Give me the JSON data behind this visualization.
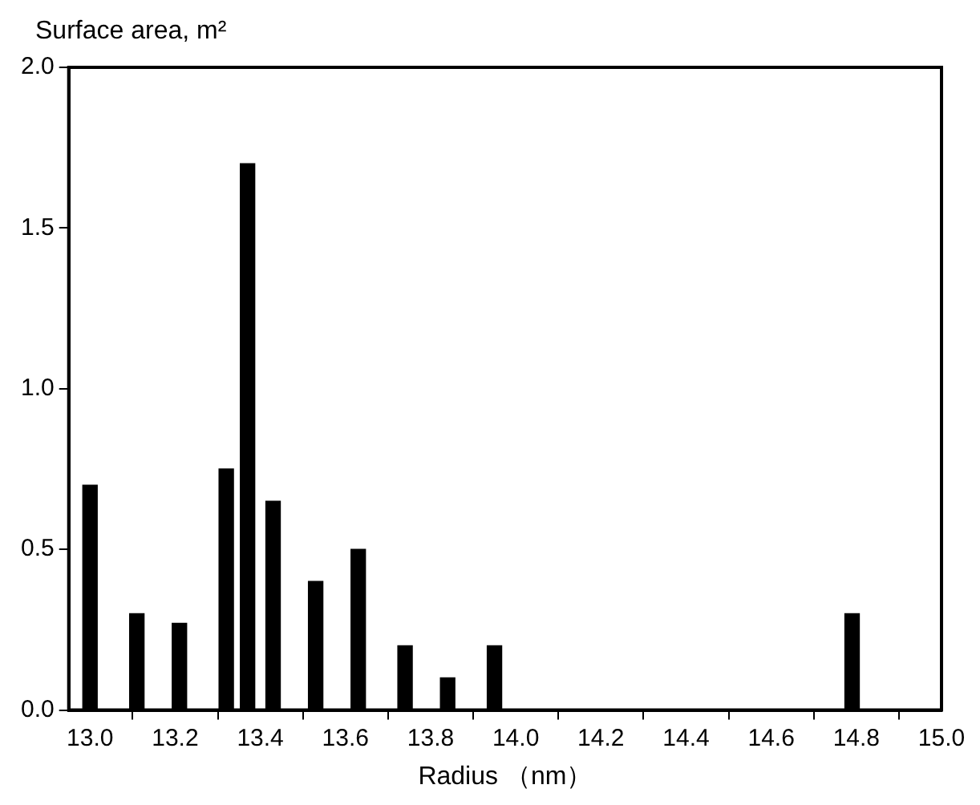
{
  "chart_data": {
    "type": "bar",
    "xlabel": "Radius （nm）",
    "ylabel": "Surface area, m²",
    "x": [
      13.0,
      13.11,
      13.21,
      13.32,
      13.37,
      13.43,
      13.53,
      13.63,
      13.74,
      13.84,
      13.95,
      14.79
    ],
    "values": [
      0.7,
      0.3,
      0.27,
      0.75,
      1.7,
      0.65,
      0.4,
      0.5,
      0.2,
      0.1,
      0.2,
      0.3
    ],
    "color": "#000000",
    "xlim": [
      12.95,
      15.0
    ],
    "xticks": [
      {
        "value": 13.0,
        "label": "13.0"
      },
      13.2,
      13.4,
      13.6,
      13.8,
      {
        "value": 14.0,
        "label": "14.0"
      },
      14.2,
      14.4,
      14.6,
      14.8,
      {
        "value": 15.0,
        "label": "15.0"
      }
    ],
    "ylim": [
      0,
      2
    ],
    "yticks": [
      {
        "value": 0,
        "label": "0.0"
      },
      0.5,
      {
        "value": 1,
        "label": "1.0"
      },
      1.5,
      {
        "value": 2,
        "label": "2.0"
      }
    ],
    "grid": false,
    "legend": false
  }
}
